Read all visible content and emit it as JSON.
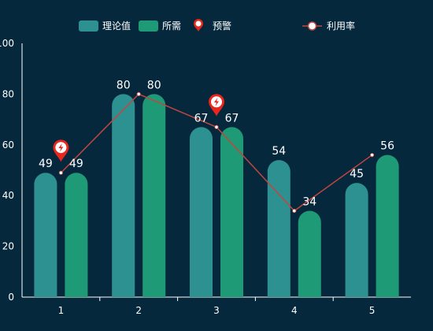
{
  "chart_data": {
    "type": "bar",
    "categories": [
      "1",
      "2",
      "3",
      "4",
      "5"
    ],
    "ylim": [
      0,
      100
    ],
    "yticks": [
      0,
      20,
      40,
      60,
      80,
      100
    ],
    "grid": false,
    "legend_placement": "top",
    "series": [
      {
        "name": "理论值",
        "type": "bar",
        "color": "#2e9191",
        "values": [
          49,
          80,
          67,
          54,
          45
        ]
      },
      {
        "name": "所需",
        "type": "bar",
        "color": "#1e9a76",
        "values": [
          49,
          80,
          67,
          34,
          56
        ]
      },
      {
        "name": "利用率",
        "type": "line",
        "color": "#c0463f",
        "values": [
          49,
          80,
          67,
          34,
          56
        ]
      }
    ],
    "warning": {
      "name": "预警",
      "color": "#e8261e",
      "icon": "lightning-pin-icon",
      "categories": [
        "1",
        "3"
      ]
    }
  }
}
